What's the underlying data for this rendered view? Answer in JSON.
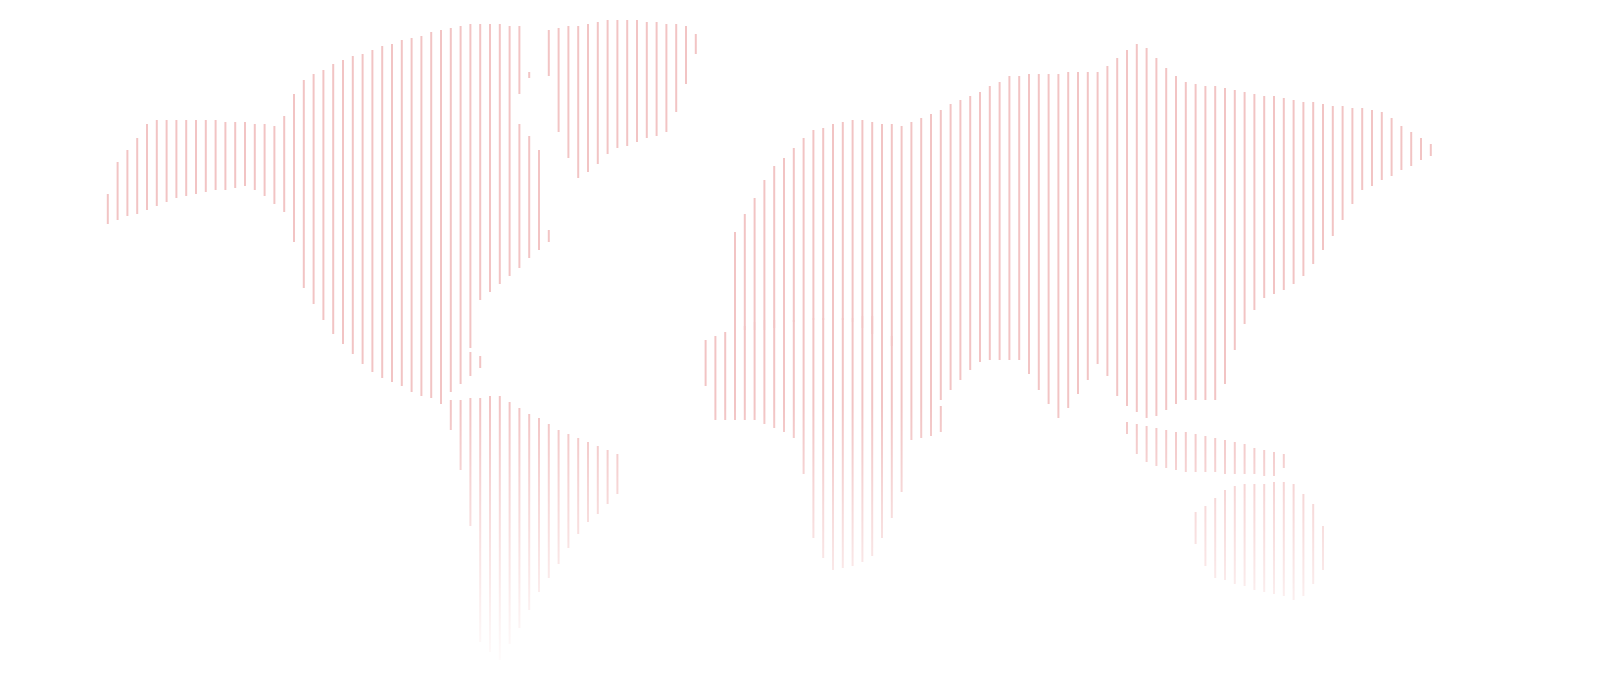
{
  "map": {
    "style": "dotted-line world map",
    "line_color": "#f2c4c4",
    "continents": [
      "north-america",
      "greenland",
      "south-america",
      "europe-asia",
      "africa",
      "southeast-asia",
      "australia"
    ]
  }
}
